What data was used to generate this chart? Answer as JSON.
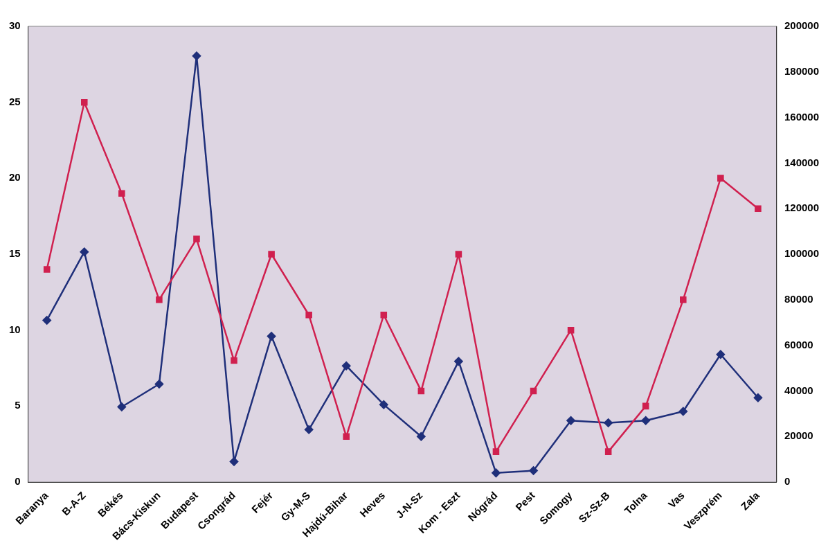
{
  "chart_data": {
    "type": "line",
    "categories": [
      "Baranya",
      "B-A-Z",
      "Békés",
      "Bács-Kiskun",
      "Budapest",
      "Csongrád",
      "Fejér",
      "Gy-M-S",
      "Hajdú-Bihar",
      "Heves",
      "J-N-Sz",
      "Kom - Eszt",
      "Nógrád",
      "Pest",
      "Somogy",
      "Sz-Sz-B",
      "Tolna",
      "Vas",
      "Veszprém",
      "Zala"
    ],
    "series": [
      {
        "color": "#d0204f",
        "marker": "square",
        "values": [
          14,
          25,
          19,
          12,
          16,
          8,
          15,
          11,
          3,
          11,
          6,
          15,
          2,
          6,
          10,
          2,
          5,
          12,
          20,
          18
        ]
      },
      {
        "color": "#1f2f7a",
        "marker": "diamond",
        "axis": "y2",
        "values": [
          71000,
          101000,
          33000,
          43000,
          187000,
          9000,
          64000,
          23000,
          51000,
          34000,
          20000,
          53000,
          4000,
          5000,
          27000,
          26000,
          27000,
          31000,
          56000,
          37000
        ]
      }
    ],
    "ylim": [
      0,
      30
    ],
    "yticks": [
      0,
      5,
      10,
      15,
      20,
      25,
      30
    ],
    "y2lim": [
      0,
      200000
    ],
    "y2ticks": [
      0,
      20000,
      40000,
      60000,
      80000,
      100000,
      120000,
      140000,
      160000,
      180000,
      200000
    ],
    "grid": false,
    "legend": false,
    "line_style": "solid"
  }
}
